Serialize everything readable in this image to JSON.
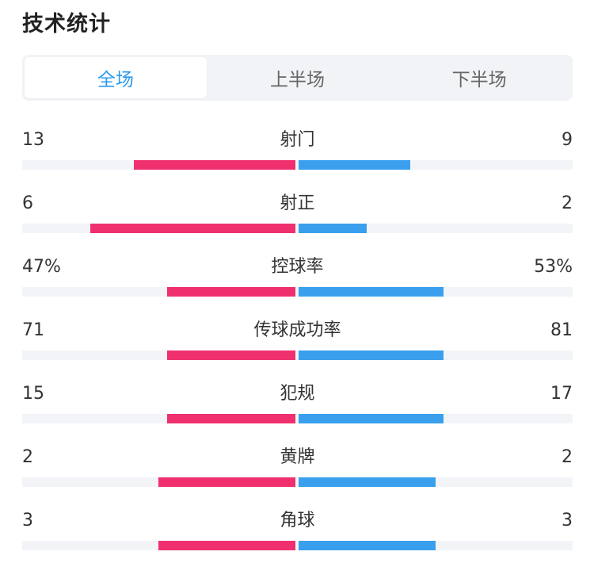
{
  "title": "技术统计",
  "tabs": [
    {
      "label": "全场",
      "active": true
    },
    {
      "label": "上半场",
      "active": false
    },
    {
      "label": "下半场",
      "active": false
    }
  ],
  "colors": {
    "left_bar": "#f0306e",
    "right_bar": "#3aa0ee",
    "active_tab": "#2a9cf0",
    "track": "#f2f4f8"
  },
  "stats": [
    {
      "label": "射门",
      "left": "13",
      "right": "9",
      "left_share": 0.59,
      "right_share": 0.41
    },
    {
      "label": "射正",
      "left": "6",
      "right": "2",
      "left_share": 0.75,
      "right_share": 0.25
    },
    {
      "label": "控球率",
      "left": "47%",
      "right": "53%",
      "left_share": 0.47,
      "right_share": 0.53
    },
    {
      "label": "传球成功率",
      "left": "71",
      "right": "81",
      "left_share": 0.47,
      "right_share": 0.53
    },
    {
      "label": "犯规",
      "left": "15",
      "right": "17",
      "left_share": 0.47,
      "right_share": 0.53
    },
    {
      "label": "黄牌",
      "left": "2",
      "right": "2",
      "left_share": 0.5,
      "right_share": 0.5
    },
    {
      "label": "角球",
      "left": "3",
      "right": "3",
      "left_share": 0.5,
      "right_share": 0.5
    }
  ]
}
